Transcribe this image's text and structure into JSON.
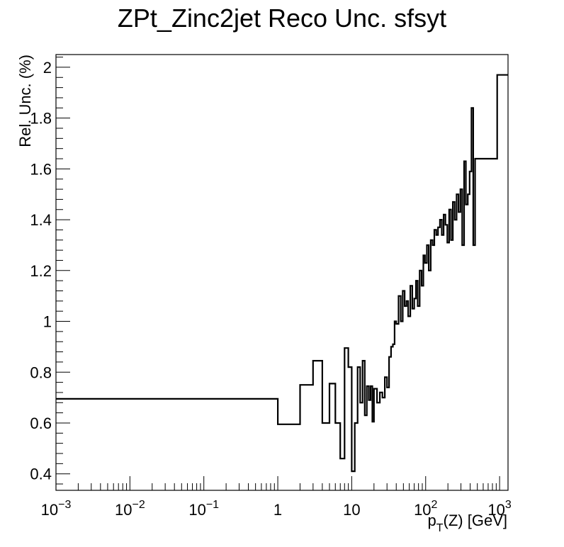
{
  "chart_data": {
    "type": "line",
    "style": "histogram-step",
    "title": "ZPt_Zinc2jet Reco Unc. sfsyt",
    "xlabel": {
      "base": "p",
      "sub": "T",
      "rest": "(Z) [GeV]"
    },
    "ylabel": "Rel. Unc. (%)",
    "x_scale": "log",
    "xlim": [
      0.001,
      1300
    ],
    "ylim": [
      0.335,
      2.05
    ],
    "grid": false,
    "legend": "none",
    "line_color": "#000000",
    "x_major_ticks": [
      {
        "value": 0.001,
        "base": "10",
        "exp": "−3"
      },
      {
        "value": 0.01,
        "base": "10",
        "exp": "−2"
      },
      {
        "value": 0.1,
        "base": "10",
        "exp": "−1"
      },
      {
        "value": 1,
        "base": "1",
        "exp": ""
      },
      {
        "value": 10,
        "base": "10",
        "exp": ""
      },
      {
        "value": 100,
        "base": "10",
        "exp": "2"
      },
      {
        "value": 1000,
        "base": "10",
        "exp": "3"
      }
    ],
    "y_major_ticks": [
      {
        "value": 0.4,
        "label": "0.4"
      },
      {
        "value": 0.6,
        "label": "0.6"
      },
      {
        "value": 0.8,
        "label": "0.8"
      },
      {
        "value": 1.0,
        "label": "1"
      },
      {
        "value": 1.2,
        "label": "1.2"
      },
      {
        "value": 1.4,
        "label": "1.4"
      },
      {
        "value": 1.6,
        "label": "1.6"
      },
      {
        "value": 1.8,
        "label": "1.8"
      },
      {
        "value": 2.0,
        "label": "2"
      }
    ],
    "bin_edges": [
      0.001,
      1,
      2,
      3,
      4,
      5,
      6,
      7,
      8,
      9,
      10,
      11,
      12,
      13,
      14,
      15,
      16,
      17,
      18,
      19,
      20,
      22,
      24,
      26,
      28,
      30,
      32,
      34,
      36,
      38,
      40,
      43,
      46,
      49,
      52,
      55,
      58,
      62,
      66,
      70,
      74,
      78,
      83,
      88,
      93,
      98,
      104,
      110,
      117,
      124,
      131,
      139,
      147,
      156,
      165,
      175,
      185,
      196,
      208,
      220,
      233,
      247,
      262,
      278,
      295,
      312,
      331,
      350,
      371,
      393,
      416,
      440,
      466,
      493,
      522,
      553,
      585,
      620,
      657,
      696,
      737,
      781,
      827,
      876,
      928,
      1300
    ],
    "values": [
      0.695,
      0.595,
      0.75,
      0.845,
      0.6,
      0.755,
      0.6,
      0.46,
      0.895,
      0.82,
      0.41,
      0.6,
      0.82,
      0.68,
      0.845,
      0.63,
      0.745,
      0.69,
      0.745,
      0.605,
      0.735,
      0.68,
      0.72,
      0.7,
      0.78,
      0.74,
      0.86,
      0.9,
      0.91,
      1.0,
      0.99,
      1.1,
      1.0,
      1.12,
      1.06,
      1.08,
      1.02,
      1.14,
      1.05,
      1.09,
      1.16,
      1.06,
      1.2,
      1.14,
      1.26,
      1.23,
      1.3,
      1.2,
      1.32,
      1.3,
      1.36,
      1.34,
      1.37,
      1.4,
      1.34,
      1.42,
      1.38,
      1.31,
      1.44,
      1.32,
      1.47,
      1.4,
      1.5,
      1.43,
      1.52,
      1.3,
      1.63,
      1.46,
      1.5,
      1.59,
      1.84,
      1.3,
      1.64,
      1.64,
      1.64,
      1.64,
      1.64,
      1.64,
      1.64,
      1.64,
      1.64,
      1.64,
      1.64,
      1.64,
      1.97
    ]
  }
}
